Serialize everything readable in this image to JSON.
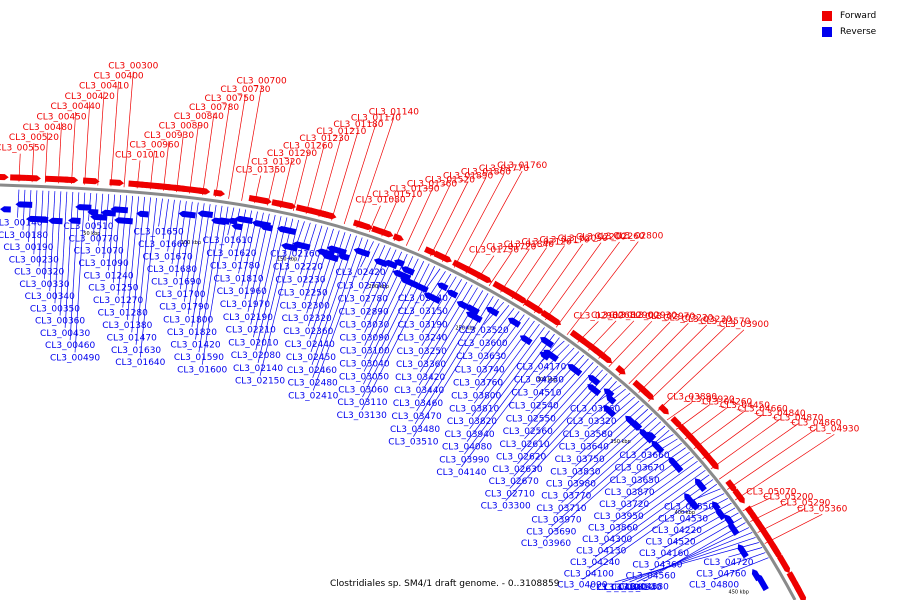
{
  "legend": {
    "forward": {
      "label": "Forward",
      "color": "#ee0000"
    },
    "reverse": {
      "label": "Reverse",
      "color": "#0000ee"
    }
  },
  "caption": "Clostridiales sp. SM4/1 draft genome. - 0..3108859",
  "ticks": [
    "50 kbp",
    "100 kbp",
    "150 kbp",
    "200 kbp",
    "250 kbp",
    "300 kbp",
    "350 kbp",
    "400 kbp",
    "450 kbp"
  ],
  "forward_labels": [
    "CL3_00550",
    "CL3_00520",
    "CL3_00480",
    "CL3_00450",
    "CL3_00440",
    "CL3_00420",
    "CL3_00410",
    "CL3_00400",
    "CL3_00300",
    "CL3_01010",
    "CL3_00960",
    "CL3_00930",
    "CL3_00890",
    "CL3_00840",
    "CL3_00780",
    "CL3_00750",
    "CL3_00730",
    "CL3_00700",
    "CL3_01350",
    "CL3_01320",
    "CL3_01290",
    "CL3_01260",
    "CL3_01230",
    "CL3_01210",
    "CL3_01180",
    "CL3_01170",
    "CL3_01140",
    "CL3_01080",
    "CL3_01510",
    "CL3_01390",
    "CL3_01360",
    "CL3_01520",
    "CL3_01890",
    "CL3_01860",
    "CL3_01770",
    "CL3_01760",
    "CL3_01750",
    "CL3_01720",
    "CL3_01840",
    "CL3_02120",
    "CL3_02170",
    "CL3_02050",
    "CL3_02200",
    "CL3_02260",
    "CL3_02800",
    "CL3_02960",
    "CL3_02680",
    "CL3_02900",
    "CL3_02930",
    "CL3_02970",
    "CL3_03220",
    "CL3_03230",
    "CL3_03570",
    "CL3_03900",
    "CL3_03890",
    "CL3_03920",
    "CL3_04260",
    "CL3_04450",
    "CL3_04660",
    "CL3_04840",
    "CL3_04870",
    "CL3_04860",
    "CL3_04930",
    "CL3_05070",
    "CL3_05200",
    "CL3_05290",
    "CL3_05360"
  ],
  "reverse_labels": [
    "CL3_00140",
    "CL3_00180",
    "CL3_00190",
    "CL3_00230",
    "CL3_00320",
    "CL3_00330",
    "CL3_00340",
    "CL3_00350",
    "CL3_00360",
    "CL3_00430",
    "CL3_00460",
    "CL3_00490",
    "CL3_00510",
    "CL3_00770",
    "CL3_01070",
    "CL3_01090",
    "CL3_01240",
    "CL3_01250",
    "CL3_01270",
    "CL3_01280",
    "CL3_01380",
    "CL3_01470",
    "CL3_01630",
    "CL3_01640",
    "CL3_01650",
    "CL3_01660",
    "CL3_01670",
    "CL3_01680",
    "CL3_01690",
    "CL3_01700",
    "CL3_01790",
    "CL3_01800",
    "CL3_01820",
    "CL3_01420",
    "CL3_01590",
    "CL3_01600",
    "CL3_01610",
    "CL3_01620",
    "CL3_01780",
    "CL3_01810",
    "CL3_01960",
    "CL3_01970",
    "CL3_02190",
    "CL3_02210",
    "CL3_02010",
    "CL3_02080",
    "CL3_02140",
    "CL3_02150",
    "CL3_02160",
    "CL3_02220",
    "CL3_02230",
    "CL3_02250",
    "CL3_02300",
    "CL3_02320",
    "CL3_02360",
    "CL3_02440",
    "CL3_02450",
    "CL3_02460",
    "CL3_02480",
    "CL3_02410",
    "CL3_02420",
    "CL3_02770",
    "CL3_02780",
    "CL3_02890",
    "CL3_03030",
    "CL3_03090",
    "CL3_03100",
    "CL3_03040",
    "CL3_03050",
    "CL3_03060",
    "CL3_03110",
    "CL3_03130",
    "CL3_03140",
    "CL3_03150",
    "CL3_03190",
    "CL3_03240",
    "CL3_03250",
    "CL3_03360",
    "CL3_03420",
    "CL3_03440",
    "CL3_03460",
    "CL3_03470",
    "CL3_03480",
    "CL3_03510",
    "CL3_03520",
    "CL3_03600",
    "CL3_03630",
    "CL3_03740",
    "CL3_03760",
    "CL3_03800",
    "CL3_03810",
    "CL3_03820",
    "CL3_03940",
    "CL3_04080",
    "CL3_03990",
    "CL3_04140",
    "CL3_04170",
    "CL3_04230",
    "CL3_04510",
    "CL3_02540",
    "CL3_02550",
    "CL3_02560",
    "CL3_02610",
    "CL3_02620",
    "CL3_02630",
    "CL3_02670",
    "CL3_02710",
    "CL3_03300",
    "CL3_03260",
    "CL3_03320",
    "CL3_03580",
    "CL3_03640",
    "CL3_03750",
    "CL3_03830",
    "CL3_03980",
    "CL3_03770",
    "CL3_03710",
    "CL3_03970",
    "CL3_03690",
    "CL3_03960",
    "CL3_03660",
    "CL3_03670",
    "CL3_03650",
    "CL3_03870",
    "CL3_03720",
    "CL3_03950",
    "CL3_03860",
    "CL3_04300",
    "CL3_04130",
    "CL3_04240",
    "CL3_04100",
    "CL3_04090",
    "CL3_04550",
    "CL3_04530",
    "CL3_04220",
    "CL3_04520",
    "CL3_04160",
    "CL3_04360",
    "CL3_04560",
    "CL3_04380",
    "CL3_04540",
    "CL3_04810",
    "CL3_04640",
    "CL3_04710",
    "CL3_04720",
    "CL3_04760",
    "CL3_04800"
  ]
}
